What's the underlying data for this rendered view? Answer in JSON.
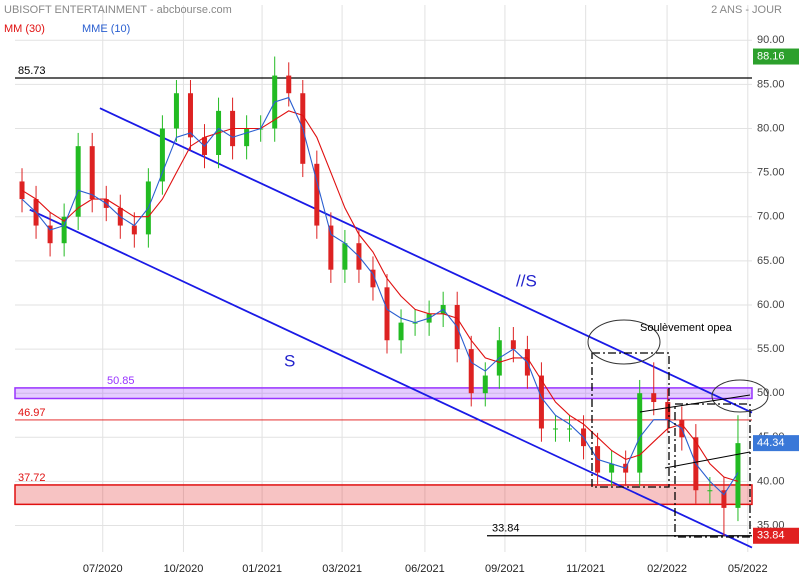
{
  "header": {
    "title": "UBISOFT ENTERTAINMENT - abcbourse.com",
    "period": "2 ANS - JOUR"
  },
  "chart_data": {
    "type": "candlestick",
    "x": [
      1,
      3,
      5,
      7,
      9,
      11,
      13,
      15,
      17,
      19,
      21,
      23,
      25,
      27,
      29,
      31,
      33,
      35,
      37,
      39,
      41,
      43,
      45,
      47,
      49,
      51,
      53,
      55,
      57,
      59,
      61,
      63,
      65,
      67,
      69,
      71,
      73,
      75,
      77,
      79,
      81,
      83,
      85,
      87,
      89,
      91,
      93,
      95,
      97,
      99,
      101,
      103
    ],
    "ohlc": {
      "up_color": "#22bb22",
      "down_color": "#dd2222",
      "open": [
        74,
        72,
        69,
        67,
        70,
        78,
        72,
        71,
        69,
        68,
        74,
        80,
        84,
        79,
        77,
        82,
        78,
        80,
        80,
        86,
        84,
        76,
        69,
        64,
        67,
        64,
        62,
        56,
        58,
        58,
        59,
        60,
        55,
        50,
        52,
        56,
        55,
        52,
        46,
        46,
        46,
        44,
        41,
        42,
        41,
        50,
        49,
        47,
        45,
        39,
        39,
        37
      ],
      "high": [
        75.5,
        73.5,
        70.5,
        71.5,
        79.5,
        79.5,
        73.5,
        72.5,
        70.5,
        75.5,
        81.5,
        85.5,
        85.5,
        80.5,
        83.5,
        83.5,
        81.5,
        81.5,
        88.16,
        87.5,
        85.5,
        77.5,
        70.5,
        68.5,
        68.5,
        65.5,
        63.5,
        59.5,
        59.5,
        60.5,
        61.5,
        61.5,
        56.5,
        53.5,
        57.5,
        57.5,
        56.5,
        53.5,
        47.5,
        47.5,
        47.5,
        45.5,
        43.5,
        43.5,
        51.5,
        53.5,
        50.5,
        48.5,
        46.5,
        40.5,
        40.5,
        47.5
      ],
      "low": [
        70.5,
        67.5,
        65.5,
        65.5,
        68.5,
        70.5,
        69.5,
        67.5,
        66.5,
        66.5,
        72.5,
        78.5,
        77.5,
        75.5,
        75.5,
        76.5,
        76.5,
        78.5,
        78.5,
        82.5,
        74.5,
        67.5,
        62.5,
        62.5,
        62.5,
        60.5,
        54.5,
        54.5,
        56.5,
        56.5,
        57.5,
        53.5,
        48.5,
        48.5,
        50.5,
        53.5,
        50.5,
        44.5,
        44.5,
        44.5,
        42.5,
        39.5,
        39.5,
        39.5,
        39.5,
        47.5,
        45.5,
        43.5,
        37.5,
        37.5,
        33.84,
        35.5
      ],
      "close": [
        72,
        69,
        67,
        70,
        78,
        72,
        71,
        69,
        68,
        74,
        80,
        84,
        79,
        77,
        82,
        78,
        80,
        80,
        86,
        84,
        76,
        69,
        64,
        67,
        64,
        62,
        56,
        58,
        58,
        59,
        60,
        55,
        50,
        52,
        56,
        55,
        52,
        46,
        46,
        46,
        44,
        41,
        42,
        41,
        50,
        49,
        47,
        45,
        39,
        39,
        37,
        44.34
      ]
    },
    "series": [
      {
        "name": "MM (30)",
        "color": "#e01010",
        "values": [
          73,
          72,
          70.5,
          69.5,
          71,
          72,
          72,
          71,
          70,
          70,
          72,
          75,
          78,
          79,
          79.5,
          80,
          80,
          80,
          81,
          82,
          81.5,
          79,
          75,
          71,
          68,
          66,
          63,
          61,
          59.5,
          59,
          59,
          58.5,
          56,
          54,
          53.5,
          54,
          54,
          51.5,
          49,
          47.5,
          46.5,
          45,
          43.5,
          42.5,
          43,
          44.5,
          46,
          46.5,
          44.5,
          42,
          40.5,
          40
        ]
      },
      {
        "name": "MME (10)",
        "color": "#2a5fd0",
        "values": [
          72,
          70.5,
          68.5,
          69,
          73,
          72.5,
          71.5,
          70,
          69,
          71,
          75,
          79,
          79.5,
          78,
          80,
          79,
          79.5,
          80,
          83,
          83.5,
          80,
          74,
          68,
          67,
          65.5,
          63.5,
          59.5,
          58.5,
          58,
          58.5,
          59.5,
          57.5,
          53.5,
          52.5,
          54,
          55,
          53.5,
          49.5,
          47.5,
          46.5,
          45,
          42.5,
          42,
          41.5,
          45,
          47,
          47,
          46,
          42,
          40,
          38.5,
          41
        ]
      }
    ],
    "xlim": [
      0,
      105
    ],
    "ylim": [
      32,
      94
    ],
    "xticks": [
      {
        "value": 12.5,
        "label": "07/2020"
      },
      {
        "value": 24,
        "label": "10/2020"
      },
      {
        "value": 35.2,
        "label": "01/2021"
      },
      {
        "value": 46.6,
        "label": "03/2021"
      },
      {
        "value": 58.4,
        "label": "06/2021"
      },
      {
        "value": 69.8,
        "label": "09/2021"
      },
      {
        "value": 81.3,
        "label": "11/2021"
      },
      {
        "value": 92.9,
        "label": "02/2022"
      },
      {
        "value": 104.4,
        "label": "05/2022"
      }
    ],
    "yticks": [
      {
        "value": 35,
        "label": "35.00"
      },
      {
        "value": 40,
        "label": "40.00"
      },
      {
        "value": 45,
        "label": "45.00"
      },
      {
        "value": 50,
        "label": "50.00"
      },
      {
        "value": 55,
        "label": "55.00"
      },
      {
        "value": 60,
        "label": "60.00"
      },
      {
        "value": 65,
        "label": "65.00"
      },
      {
        "value": 70,
        "label": "70.00"
      },
      {
        "value": 75,
        "label": "75.00"
      },
      {
        "value": 80,
        "label": "80.00"
      },
      {
        "value": 85,
        "label": "85.00"
      },
      {
        "value": 90,
        "label": "90.00"
      }
    ],
    "grid": true,
    "levels": [
      {
        "value": 85.73,
        "color": "#000000"
      },
      {
        "value": 46.97,
        "color": "#e01010"
      },
      {
        "value": 33.84,
        "color": "#000000"
      }
    ],
    "bands": [
      {
        "value": 50.85,
        "ylim": [
          49.4,
          50.6
        ],
        "color": "#9933ff"
      },
      {
        "value": 37.72,
        "ylim": [
          37.4,
          39.6
        ],
        "color": "#e01010"
      }
    ],
    "channels": [
      {
        "x": [
          12.1,
          105
        ],
        "y": [
          82.3,
          47.8
        ]
      },
      {
        "x": [
          2.1,
          105
        ],
        "y": [
          70.8,
          32.5
        ]
      }
    ],
    "price_tags": [
      {
        "value": 88.16,
        "color": "#2ca02c"
      },
      {
        "value": 44.34,
        "color": "#3a78d8"
      },
      {
        "value": 33.84,
        "color": "#e02020"
      }
    ],
    "annotations": [
      "S",
      "//S",
      "Soulèvement opea"
    ]
  }
}
